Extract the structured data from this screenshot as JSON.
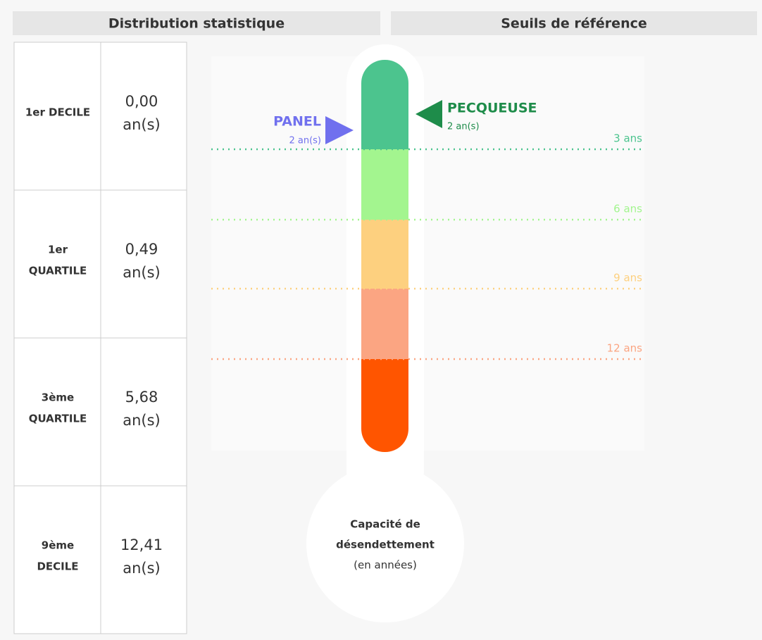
{
  "headers": {
    "left": "Distribution statistique",
    "right": "Seuils de référence"
  },
  "table": {
    "rows": [
      {
        "label": [
          "1er DECILE"
        ],
        "value": "0,00",
        "unit": "an(s)"
      },
      {
        "label": [
          "1er",
          "QUARTILE"
        ],
        "value": "0,49",
        "unit": "an(s)"
      },
      {
        "label": [
          "3ème",
          "QUARTILE"
        ],
        "value": "5,68",
        "unit": "an(s)"
      },
      {
        "label": [
          "9ème",
          "DECILE"
        ],
        "value": "12,41",
        "unit": "an(s)"
      }
    ]
  },
  "thermometer": {
    "top_color": "#4cc48e",
    "thresholds": [
      {
        "label": "3 ans",
        "color": "#4cc48e"
      },
      {
        "label": "6 ans",
        "color": "#a3f58f"
      },
      {
        "label": "9 ans",
        "color": "#fdd07f"
      },
      {
        "label": "12 ans",
        "color": "#fba582"
      }
    ],
    "bottom_color": "#ff5500",
    "markers": [
      {
        "name": "PANEL",
        "value": "2 an(s)",
        "color": "#7070ee"
      },
      {
        "name": "PECQUEUSE",
        "value": "2 an(s)",
        "color": "#1e8c4a"
      }
    ],
    "bulb_text": [
      "Capacité de",
      "désendettement",
      "(en années)"
    ]
  }
}
